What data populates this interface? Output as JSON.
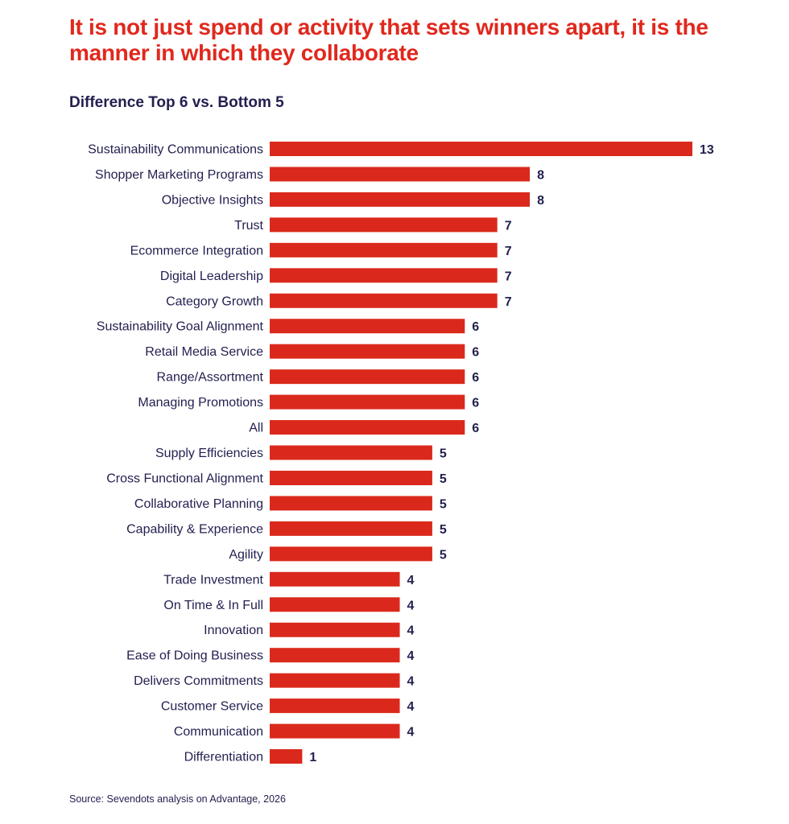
{
  "header": {
    "title": "It is not just spend or activity that sets winners apart, it is the manner in which they collaborate",
    "subtitle": "Difference Top 6 vs. Bottom 5"
  },
  "footer": {
    "source": "Source: Sevendots analysis on Advantage, 2026"
  },
  "colors": {
    "title": "#e0281d",
    "bar": "#da291c",
    "text": "#221f4f"
  },
  "chart_data": {
    "type": "bar",
    "orientation": "horizontal",
    "title": "Difference Top 6 vs. Bottom 5",
    "xlabel": "",
    "ylabel": "",
    "xlim": [
      0,
      13
    ],
    "grid": false,
    "legend": "none",
    "categories": [
      "Sustainability Communications",
      "Shopper Marketing Programs",
      "Objective Insights",
      "Trust",
      "Ecommerce Integration",
      "Digital Leadership",
      "Category Growth",
      "Sustainability Goal Alignment",
      "Retail Media Service",
      "Range/Assortment",
      "Managing Promotions",
      "All",
      "Supply Efficiencies",
      "Cross Functional Alignment",
      "Collaborative Planning",
      "Capability & Experience",
      "Agility",
      "Trade Investment",
      "On Time & In Full",
      "Innovation",
      "Ease of Doing Business",
      "Delivers Commitments",
      "Customer Service",
      "Communication",
      "Differentiation"
    ],
    "values": [
      13,
      8,
      8,
      7,
      7,
      7,
      7,
      6,
      6,
      6,
      6,
      6,
      5,
      5,
      5,
      5,
      5,
      4,
      4,
      4,
      4,
      4,
      4,
      4,
      1
    ],
    "data_labels": [
      "13",
      "8",
      "8",
      "7",
      "7",
      "7",
      "7",
      "6",
      "6",
      "6",
      "6",
      "6",
      "5",
      "5",
      "5",
      "5",
      "5",
      "4",
      "4",
      "4",
      "4",
      "4",
      "4",
      "4",
      "1"
    ]
  }
}
